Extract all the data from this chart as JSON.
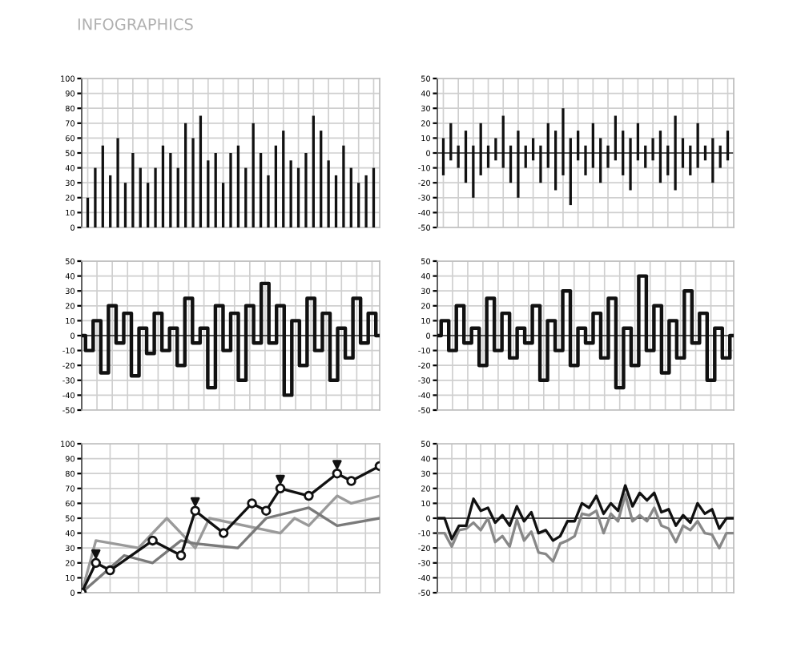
{
  "chart_data": [
    {
      "type": "bar",
      "title": "INFOGRAPHICS",
      "categories": [
        null,
        null,
        null,
        null,
        null,
        null,
        null,
        null,
        null,
        null,
        null,
        null,
        null,
        null,
        null,
        null,
        null,
        null,
        null,
        null,
        null,
        null,
        null,
        null,
        null,
        null,
        null,
        null,
        null,
        null,
        null,
        null,
        null,
        null,
        null,
        null,
        null,
        null,
        null
      ],
      "values": [
        20,
        40,
        55,
        35,
        60,
        30,
        50,
        40,
        30,
        40,
        55,
        50,
        40,
        70,
        60,
        75,
        45,
        50,
        30,
        50,
        55,
        40,
        70,
        50,
        35,
        55,
        65,
        45,
        40,
        50,
        75,
        65,
        45,
        35,
        55,
        40,
        30,
        35,
        40
      ],
      "color": "#111111",
      "ylim": [
        0,
        100
      ],
      "yticks": [
        0,
        10,
        20,
        30,
        40,
        50,
        60,
        70,
        80,
        90,
        100
      ],
      "grid": true,
      "tick_labels": "y"
    },
    {
      "type": "bar",
      "categories": [
        null,
        null,
        null,
        null,
        null,
        null,
        null,
        null,
        null,
        null,
        null,
        null,
        null,
        null,
        null,
        null,
        null,
        null,
        null,
        null,
        null,
        null,
        null,
        null,
        null,
        null,
        null,
        null,
        null,
        null,
        null,
        null,
        null,
        null,
        null,
        null,
        null,
        null,
        null
      ],
      "base": [
        -15,
        -5,
        -10,
        -20,
        -30,
        -15,
        -10,
        -5,
        -10,
        -20,
        -30,
        -10,
        -5,
        -20,
        -10,
        -25,
        -15,
        -35,
        -5,
        -15,
        -10,
        -20,
        -10,
        -5,
        -15,
        -25,
        -5,
        -10,
        -5,
        -20,
        -15,
        -25,
        -10,
        -15,
        -10,
        -5,
        -20,
        -10,
        -5
      ],
      "values": [
        25,
        25,
        15,
        35,
        35,
        35,
        15,
        15,
        35,
        25,
        45,
        15,
        15,
        25,
        30,
        40,
        45,
        45,
        20,
        20,
        30,
        30,
        15,
        30,
        30,
        35,
        25,
        15,
        15,
        35,
        20,
        50,
        20,
        20,
        30,
        10,
        30,
        15,
        20
      ],
      "color": "#111111",
      "ylim": [
        -50,
        50
      ],
      "yticks": [
        -50,
        -40,
        -30,
        -20,
        -10,
        0,
        10,
        20,
        30,
        40,
        50
      ],
      "grid": true,
      "tick_labels": "y"
    },
    {
      "type": "step",
      "categories": [
        null,
        null,
        null,
        null,
        null,
        null,
        null,
        null,
        null,
        null,
        null,
        null,
        null,
        null,
        null,
        null,
        null,
        null,
        null,
        null,
        null,
        null,
        null,
        null,
        null,
        null,
        null,
        null,
        null,
        null,
        null,
        null,
        null,
        null,
        null,
        null,
        null,
        null,
        null,
        null
      ],
      "values": [
        0,
        -10,
        10,
        -25,
        20,
        -5,
        15,
        -27,
        5,
        -12,
        15,
        -10,
        5,
        -20,
        25,
        -5,
        5,
        -35,
        20,
        -10,
        15,
        -30,
        20,
        -5,
        35,
        -5,
        20,
        -40,
        10,
        -20,
        25,
        -10,
        15,
        -30,
        5,
        -15,
        25,
        -5,
        15,
        0
      ],
      "color": "#111111",
      "ylim": [
        -50,
        50
      ],
      "yticks": [
        -50,
        -40,
        -30,
        -20,
        -10,
        0,
        10,
        20,
        30,
        40,
        50
      ],
      "grid": true,
      "tick_labels": "y"
    },
    {
      "type": "step",
      "categories": [
        null,
        null,
        null,
        null,
        null,
        null,
        null,
        null,
        null,
        null,
        null,
        null,
        null,
        null,
        null,
        null,
        null,
        null,
        null,
        null,
        null,
        null,
        null,
        null,
        null,
        null,
        null,
        null,
        null,
        null,
        null,
        null,
        null,
        null,
        null,
        null,
        null,
        null,
        null,
        null
      ],
      "values": [
        0,
        10,
        -10,
        20,
        -5,
        5,
        -20,
        25,
        -10,
        15,
        -15,
        5,
        -5,
        20,
        -30,
        10,
        -10,
        30,
        -20,
        5,
        -5,
        15,
        -15,
        25,
        -35,
        5,
        -20,
        40,
        -10,
        20,
        -25,
        10,
        -15,
        30,
        -5,
        15,
        -30,
        5,
        -15,
        0
      ],
      "color": "#111111",
      "ylim": [
        -50,
        50
      ],
      "yticks": [
        -50,
        -40,
        -30,
        -20,
        -10,
        0,
        10,
        20,
        30,
        40,
        50
      ],
      "grid": true,
      "tick_labels": "y"
    },
    {
      "type": "line",
      "categories": [
        null,
        null,
        null,
        null,
        null,
        null,
        null,
        null,
        null,
        null,
        null,
        null,
        null,
        null,
        null,
        null,
        null,
        null,
        null,
        null,
        null,
        null
      ],
      "ylim": [
        0,
        100
      ],
      "yticks": [
        0,
        10,
        20,
        30,
        40,
        50,
        60,
        70,
        80,
        90,
        100
      ],
      "grid": true,
      "tick_labels": "y",
      "series": [
        {
          "color": "#9a9a9a",
          "values": [
            0,
            35,
            null,
            null,
            30,
            null,
            50,
            null,
            30,
            50,
            null,
            null,
            null,
            null,
            40,
            50,
            45,
            null,
            65,
            60,
            null,
            65
          ]
        },
        {
          "color": "#7a7a7a",
          "values": [
            0,
            null,
            null,
            25,
            null,
            20,
            null,
            35,
            33,
            null,
            null,
            30,
            null,
            50,
            null,
            null,
            57,
            null,
            45,
            null,
            null,
            50
          ]
        },
        {
          "color": "#111111",
          "marker": "circle",
          "values": [
            0,
            20,
            15,
            null,
            null,
            35,
            null,
            25,
            55,
            null,
            40,
            null,
            60,
            55,
            70,
            null,
            65,
            null,
            80,
            75,
            null,
            85
          ]
        },
        {
          "type": "scatter",
          "color": "#111111",
          "marker": "triangle",
          "values": [
            null,
            26,
            null,
            null,
            null,
            null,
            null,
            null,
            61,
            null,
            null,
            null,
            null,
            null,
            76,
            null,
            null,
            null,
            86,
            null,
            null,
            null
          ]
        }
      ]
    },
    {
      "type": "line",
      "categories": [
        null,
        null,
        null,
        null,
        null,
        null,
        null,
        null,
        null,
        null,
        null,
        null,
        null,
        null,
        null,
        null,
        null,
        null,
        null,
        null,
        null,
        null,
        null,
        null,
        null,
        null,
        null,
        null,
        null,
        null,
        null,
        null,
        null,
        null,
        null,
        null,
        null,
        null,
        null,
        null,
        null,
        null
      ],
      "ylim": [
        -50,
        50
      ],
      "yticks": [
        -50,
        -40,
        -30,
        -20,
        -10,
        0,
        10,
        20,
        30,
        40,
        50
      ],
      "grid": true,
      "tick_labels": "y",
      "series": [
        {
          "color": "#888888",
          "values": [
            -10,
            -10,
            -19,
            -8,
            -7,
            -3,
            -8,
            0,
            -16,
            -12,
            -19,
            -1,
            -15,
            -9,
            -23,
            -24,
            -29,
            -17,
            -15,
            -12,
            3,
            2,
            5,
            -10,
            3,
            -2,
            16,
            -2,
            2,
            -2,
            7,
            -5,
            -7,
            -16,
            -5,
            -8,
            -2,
            -10,
            -11,
            -20,
            -10,
            -10
          ]
        },
        {
          "color": "#111111",
          "values": [
            0,
            0,
            -14,
            -5,
            -5,
            13,
            5,
            7,
            -3,
            2,
            -5,
            8,
            -2,
            4,
            -10,
            -8,
            -15,
            -12,
            -2,
            -2,
            10,
            7,
            15,
            3,
            10,
            5,
            22,
            8,
            17,
            12,
            17,
            4,
            6,
            -5,
            2,
            -3,
            10,
            3,
            6,
            -7,
            0,
            0
          ]
        }
      ]
    }
  ]
}
